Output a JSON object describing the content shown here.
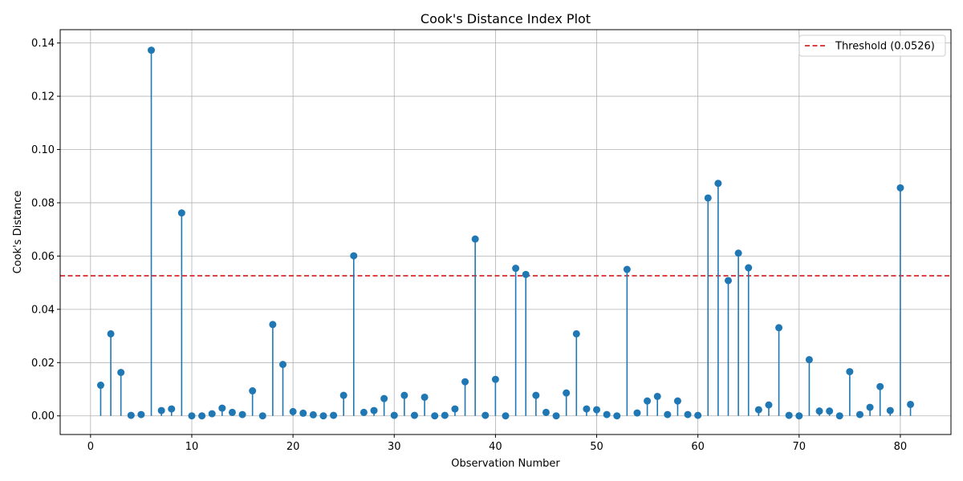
{
  "chart_data": {
    "type": "stem",
    "title": "Cook's Distance Index Plot",
    "xlabel": "Observation Number",
    "ylabel": "Cook's Distance",
    "xlim": [
      -3,
      85
    ],
    "ylim": [
      -0.007,
      0.145
    ],
    "xticks": [
      0,
      10,
      20,
      30,
      40,
      50,
      60,
      70,
      80
    ],
    "yticks": [
      0.0,
      0.02,
      0.04,
      0.06,
      0.08,
      0.1,
      0.12,
      0.14
    ],
    "ytick_labels": [
      "0.00",
      "0.02",
      "0.04",
      "0.06",
      "0.08",
      "0.10",
      "0.12",
      "0.14"
    ],
    "grid": true,
    "legend_position": "top-right",
    "series_color": "#1f77b4",
    "threshold": {
      "label": "Threshold (0.0526)",
      "value": 0.0526,
      "color": "#d62728"
    },
    "x": [
      1,
      2,
      3,
      4,
      5,
      6,
      7,
      8,
      9,
      10,
      11,
      12,
      13,
      14,
      15,
      16,
      17,
      18,
      19,
      20,
      21,
      22,
      23,
      24,
      25,
      26,
      27,
      28,
      29,
      30,
      31,
      32,
      33,
      34,
      35,
      36,
      37,
      38,
      39,
      40,
      41,
      42,
      43,
      44,
      45,
      46,
      47,
      48,
      49,
      50,
      51,
      52,
      53,
      54,
      55,
      56,
      57,
      58,
      59,
      60,
      61,
      62,
      63,
      64,
      65,
      66,
      67,
      68,
      69,
      70,
      71,
      72,
      73,
      74,
      75,
      76,
      77,
      78,
      79,
      80,
      81
    ],
    "values": [
      0.0115,
      0.0308,
      0.0163,
      0.0002,
      0.0005,
      0.1373,
      0.002,
      0.0026,
      0.0762,
      0.0,
      0.0,
      0.0008,
      0.0029,
      0.0013,
      0.0005,
      0.0094,
      0.0,
      0.0343,
      0.0193,
      0.0016,
      0.001,
      0.0004,
      0.0,
      0.0002,
      0.0077,
      0.0601,
      0.0013,
      0.002,
      0.0065,
      0.0002,
      0.0077,
      0.0002,
      0.007,
      0.0,
      0.0002,
      0.0026,
      0.0128,
      0.0664,
      0.0002,
      0.0137,
      0.0,
      0.0554,
      0.0531,
      0.0077,
      0.0013,
      0.0,
      0.0086,
      0.0308,
      0.0026,
      0.0023,
      0.0005,
      0.0,
      0.055,
      0.0011,
      0.0056,
      0.0073,
      0.0005,
      0.0056,
      0.0005,
      0.0002,
      0.0818,
      0.0873,
      0.0508,
      0.0611,
      0.0556,
      0.0023,
      0.0041,
      0.0331,
      0.0002,
      0.0,
      0.0211,
      0.0018,
      0.0018,
      0.0,
      0.0166,
      0.0005,
      0.0032,
      0.011,
      0.002,
      0.0856,
      0.0043
    ]
  }
}
